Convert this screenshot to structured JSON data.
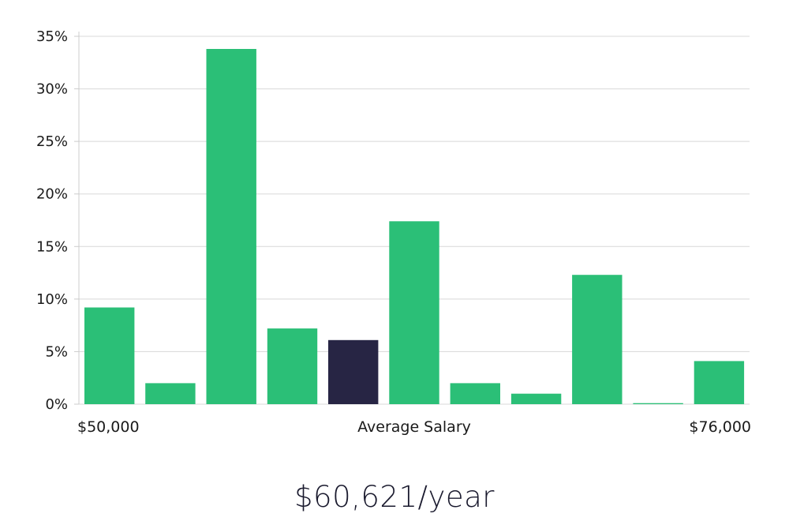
{
  "chart_data": {
    "type": "bar",
    "title": "",
    "categories": [
      "1",
      "2",
      "3",
      "4",
      "5",
      "6",
      "7",
      "8",
      "9",
      "10",
      "11"
    ],
    "values": [
      9.2,
      2.0,
      33.8,
      7.2,
      6.1,
      17.4,
      2.0,
      1.0,
      12.3,
      0.1,
      4.1
    ],
    "highlight_index": 4,
    "ylim": [
      0,
      35
    ],
    "y_ticks": [
      0,
      5,
      10,
      15,
      20,
      25,
      30,
      35
    ],
    "y_tick_labels": [
      "0%",
      "5%",
      "10%",
      "15%",
      "20%",
      "25%",
      "30%",
      "35%"
    ],
    "x_start_label": "$50,000",
    "x_center_label": "Average Salary",
    "x_end_label": "$76,000",
    "grid": true,
    "legend": "none",
    "colors": {
      "bar": "#2bbf77",
      "highlight": "#272544",
      "grid": "#d8d8d8",
      "axis": "#cccccc"
    }
  },
  "salary_label": "$60,621/year"
}
